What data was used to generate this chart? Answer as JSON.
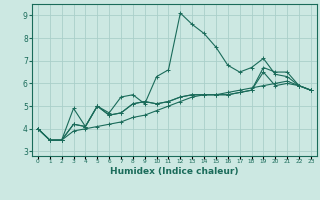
{
  "xlabel": "Humidex (Indice chaleur)",
  "ylabel": "",
  "x_values": [
    0,
    1,
    2,
    3,
    4,
    5,
    6,
    7,
    8,
    9,
    10,
    11,
    12,
    13,
    14,
    15,
    16,
    17,
    18,
    19,
    20,
    21,
    22,
    23
  ],
  "lines": [
    [
      4.0,
      3.5,
      3.5,
      4.9,
      4.1,
      5.0,
      4.7,
      5.4,
      5.5,
      5.1,
      6.3,
      6.6,
      9.1,
      8.6,
      8.2,
      7.6,
      6.8,
      6.5,
      6.7,
      7.1,
      6.4,
      6.3,
      5.9,
      5.7
    ],
    [
      4.0,
      3.5,
      3.5,
      4.2,
      4.1,
      5.0,
      4.6,
      4.7,
      5.1,
      5.2,
      5.1,
      5.2,
      5.4,
      5.5,
      5.5,
      5.5,
      5.5,
      5.6,
      5.7,
      6.5,
      5.9,
      6.0,
      5.9,
      5.7
    ],
    [
      4.0,
      3.5,
      3.5,
      4.2,
      4.1,
      5.0,
      4.6,
      4.7,
      5.1,
      5.2,
      5.1,
      5.2,
      5.4,
      5.5,
      5.5,
      5.5,
      5.5,
      5.6,
      5.7,
      6.7,
      6.5,
      6.5,
      5.9,
      5.7
    ],
    [
      4.0,
      3.5,
      3.5,
      3.9,
      4.0,
      4.1,
      4.2,
      4.3,
      4.5,
      4.6,
      4.8,
      5.0,
      5.2,
      5.4,
      5.5,
      5.5,
      5.6,
      5.7,
      5.8,
      5.9,
      6.0,
      6.1,
      5.9,
      5.7
    ]
  ],
  "line_color": "#1a6b5a",
  "background_color": "#cce8e2",
  "grid_color": "#aacfca",
  "ylim": [
    2.8,
    9.5
  ],
  "xlim": [
    -0.5,
    23.5
  ],
  "yticks": [
    3,
    4,
    5,
    6,
    7,
    8,
    9
  ],
  "xticks": [
    0,
    1,
    2,
    3,
    4,
    5,
    6,
    7,
    8,
    9,
    10,
    11,
    12,
    13,
    14,
    15,
    16,
    17,
    18,
    19,
    20,
    21,
    22,
    23
  ],
  "marker": "+"
}
